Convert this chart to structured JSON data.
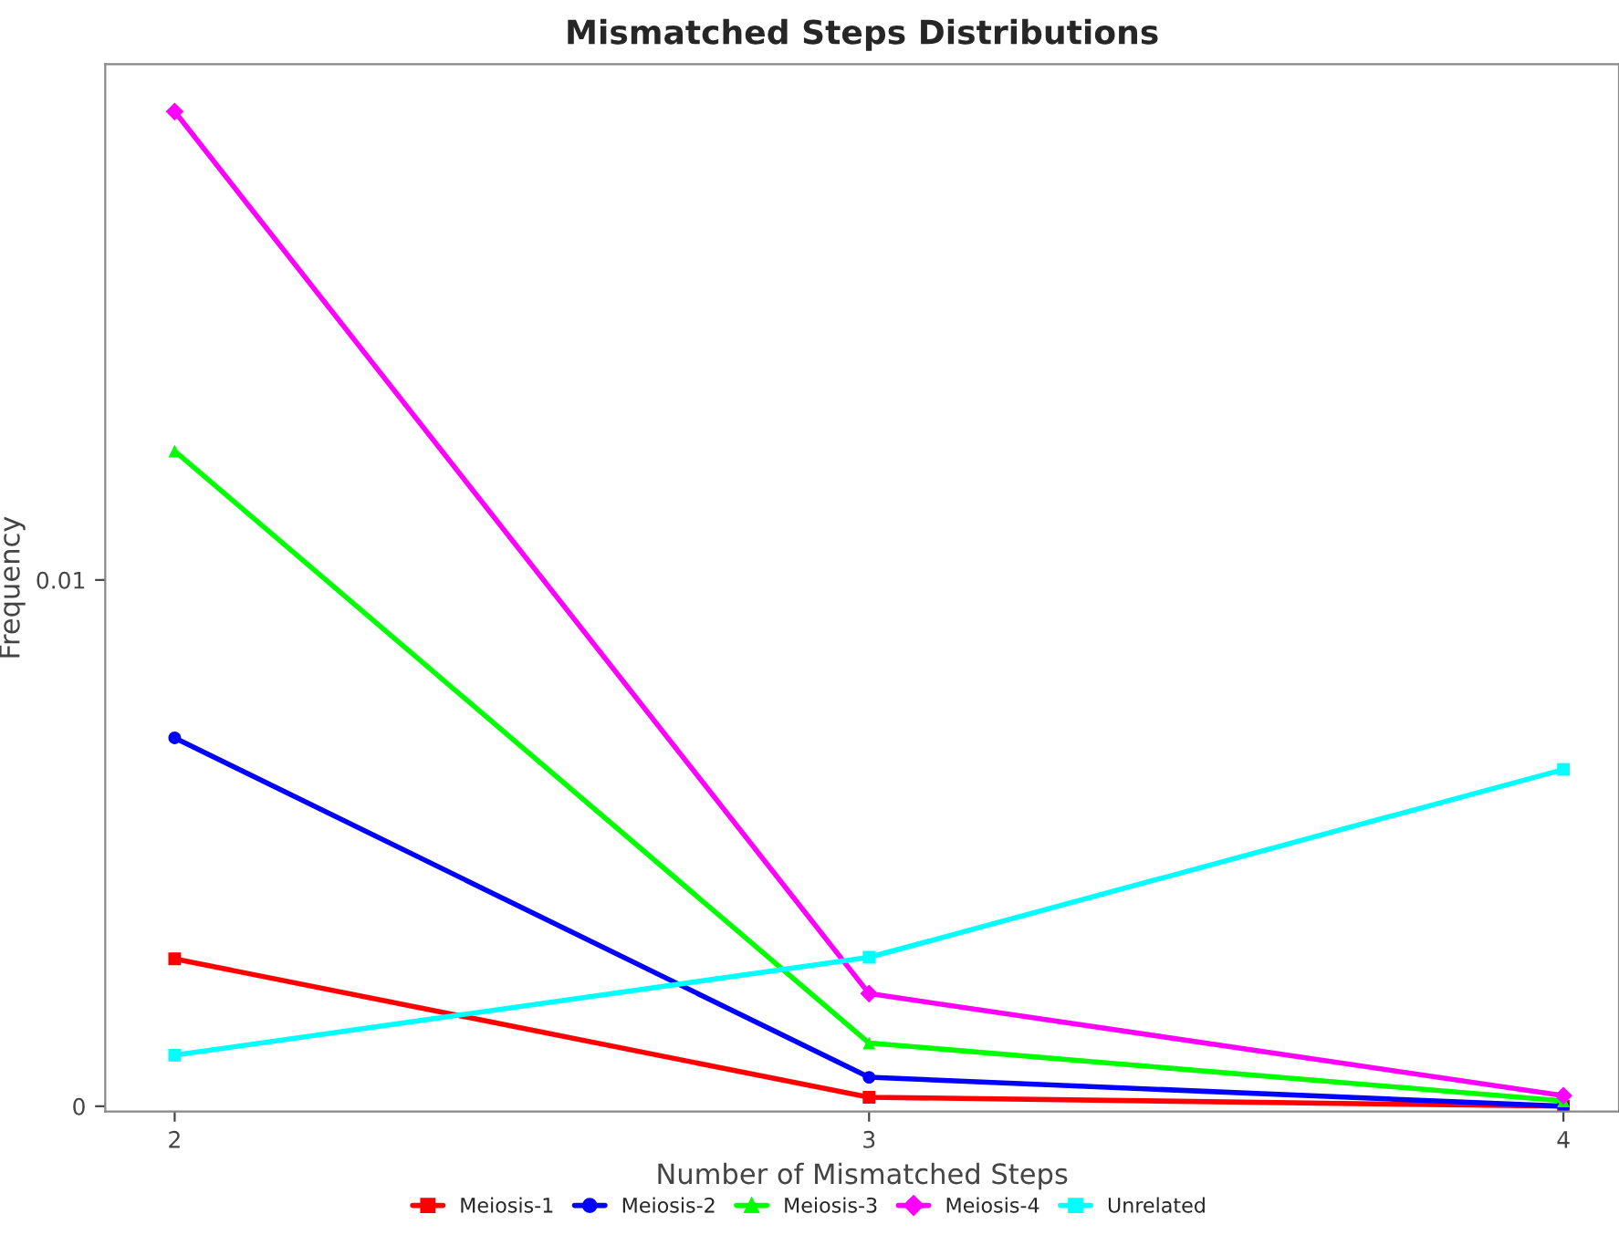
{
  "chart_data": {
    "type": "line",
    "title": "Mismatched Steps Distributions",
    "xlabel": "Number of Mismatched Steps",
    "ylabel": "Frequency",
    "x": [
      2,
      3,
      4
    ],
    "series": [
      {
        "name": "Meiosis-1",
        "color": "#ff0000",
        "marker": "square",
        "values": [
          0.0028,
          0.00017,
          0
        ]
      },
      {
        "name": "Meiosis-2",
        "color": "#0000ff",
        "marker": "circle",
        "values": [
          0.007,
          0.00055,
          0
        ]
      },
      {
        "name": "Meiosis-3",
        "color": "#00ff00",
        "marker": "triangle",
        "values": [
          0.01245,
          0.0012,
          0.0001
        ]
      },
      {
        "name": "Meiosis-4",
        "color": "#ff00ff",
        "marker": "diamond",
        "values": [
          0.0189,
          0.00214,
          0.0002
        ]
      },
      {
        "name": "Unrelated",
        "color": "#00ffff",
        "marker": "square",
        "values": [
          0.00097,
          0.00283,
          0.0064
        ]
      }
    ],
    "xlim": [
      1.9,
      4.08
    ],
    "xticks": [
      2,
      3,
      4
    ],
    "ylim": [
      -0.0001,
      0.0198
    ],
    "yticks": [
      0,
      0.01
    ],
    "grid": false,
    "legend": "bottom",
    "line_style": "solid"
  }
}
